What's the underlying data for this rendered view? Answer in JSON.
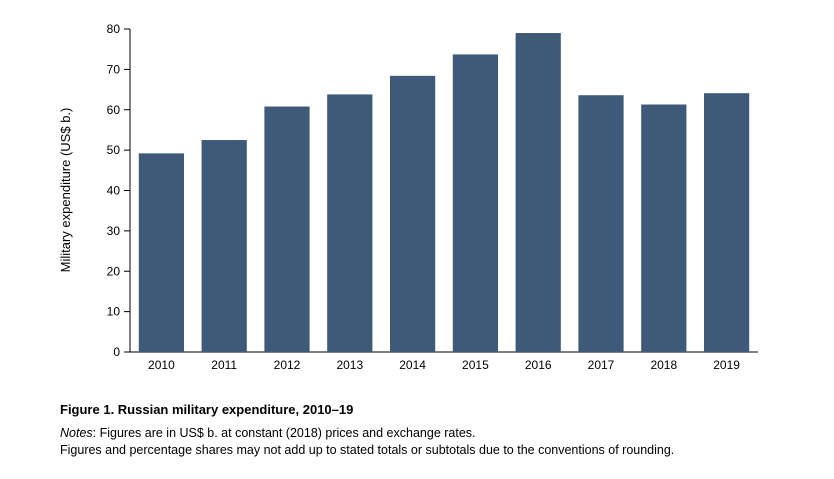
{
  "figure": {
    "title": "Figure 1. Russian military expenditure, 2010–19",
    "notes_label": "Notes",
    "notes_line1": ": Figures are in US$ b. at constant (2018) prices and exchange rates.",
    "notes_line2": "Figures and percentage shares may not add up to stated totals or subtotals due to the conventions of rounding."
  },
  "chart_data": {
    "type": "bar",
    "categories": [
      "2010",
      "2011",
      "2012",
      "2013",
      "2014",
      "2015",
      "2016",
      "2017",
      "2018",
      "2019"
    ],
    "values": [
      49.2,
      52.5,
      60.8,
      63.8,
      68.4,
      73.7,
      79.0,
      63.6,
      61.3,
      64.1
    ],
    "xlabel": "",
    "ylabel": "Military expenditure (US$ b.)",
    "ylim": [
      0,
      80
    ],
    "yticks": [
      0,
      10,
      20,
      30,
      40,
      50,
      60,
      70,
      80
    ],
    "bar_color": "#3f5a78",
    "grid": false,
    "legend": "none"
  }
}
